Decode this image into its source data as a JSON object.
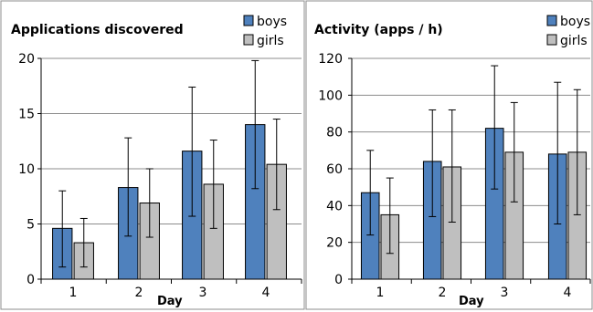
{
  "chart_data": [
    {
      "type": "bar",
      "title": "Applications discovered",
      "xlabel": "Day",
      "ylabel": "",
      "categories": [
        "1",
        "2",
        "3",
        "4"
      ],
      "ylim": [
        0,
        20
      ],
      "yticks": [
        0,
        5,
        10,
        15,
        20
      ],
      "grid": true,
      "legend": "top-right",
      "series": [
        {
          "name": "boys",
          "color": "#4F81BD",
          "values": [
            4.6,
            8.3,
            11.6,
            14.0
          ],
          "err_low": [
            1.1,
            3.9,
            5.7,
            8.2
          ],
          "err_high": [
            8.0,
            12.8,
            17.4,
            19.8
          ]
        },
        {
          "name": "girls",
          "color": "#BFBFBF",
          "values": [
            3.3,
            6.9,
            8.6,
            10.4
          ],
          "err_low": [
            1.1,
            3.8,
            4.6,
            6.3
          ],
          "err_high": [
            5.5,
            10.0,
            12.6,
            14.5
          ]
        }
      ]
    },
    {
      "type": "bar",
      "title": "Activity (apps / h)",
      "xlabel": "Day",
      "ylabel": "",
      "categories": [
        "1",
        "2",
        "3",
        "4"
      ],
      "ylim": [
        0,
        120
      ],
      "yticks": [
        0,
        20,
        40,
        60,
        80,
        100,
        120
      ],
      "grid": true,
      "legend": "top-right",
      "series": [
        {
          "name": "boys",
          "color": "#4F81BD",
          "values": [
            47,
            64,
            82,
            68
          ],
          "err_low": [
            24,
            34,
            49,
            30
          ],
          "err_high": [
            70,
            92,
            116,
            107
          ]
        },
        {
          "name": "girls",
          "color": "#BFBFBF",
          "values": [
            35,
            61,
            69,
            69
          ],
          "err_low": [
            14,
            31,
            42,
            35
          ],
          "err_high": [
            55,
            92,
            96,
            103
          ]
        }
      ]
    }
  ]
}
